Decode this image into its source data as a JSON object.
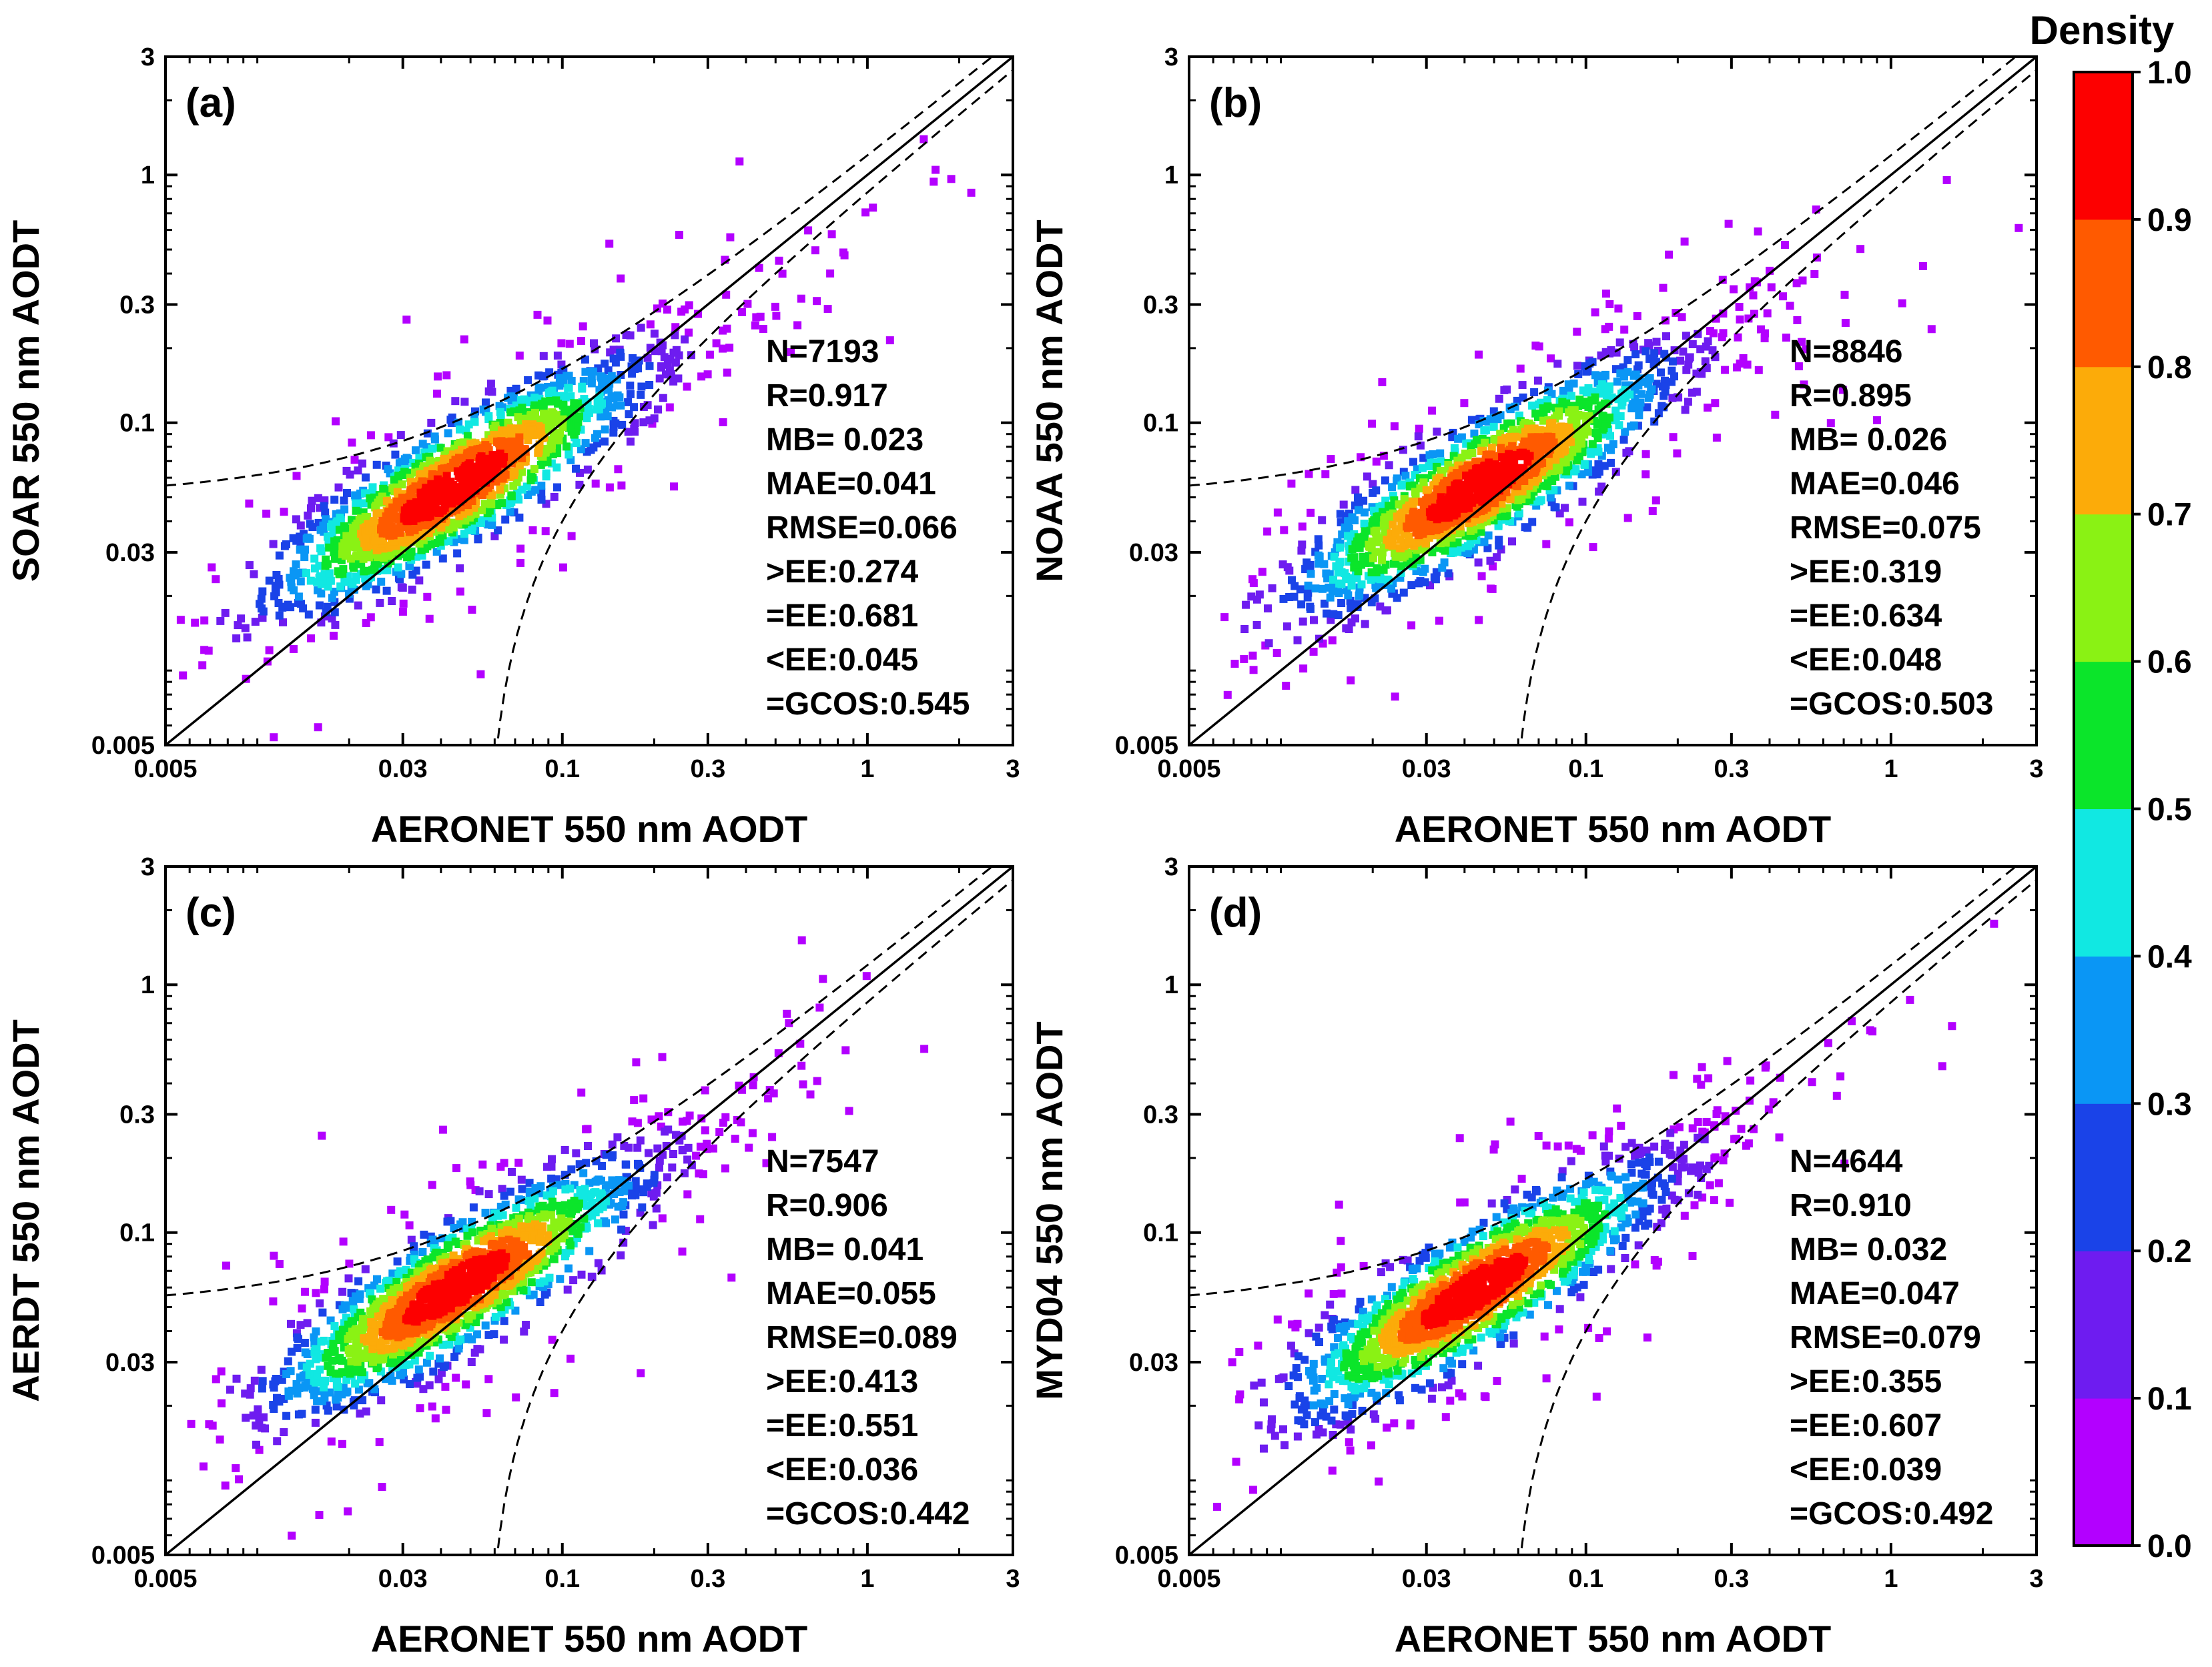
{
  "figure": {
    "colorbar": {
      "title": "Density",
      "ticks": [
        "0.0",
        "0.1",
        "0.2",
        "0.3",
        "0.4",
        "0.5",
        "0.6",
        "0.7",
        "0.8",
        "0.9",
        "1.0"
      ],
      "colors": [
        "#b300ff",
        "#6e1cf0",
        "#1a43e8",
        "#0a96f5",
        "#11e8e2",
        "#0be52a",
        "#8af214",
        "#fcab09",
        "#ff5a00",
        "#fd0000"
      ]
    }
  },
  "chart_data": [
    {
      "type": "scatter",
      "panel_label": "(a)",
      "xlabel": "AERONET 550 nm AODT",
      "ylabel": "SOAR 550 nm AODT",
      "xscale": "log",
      "yscale": "log",
      "xlim": [
        0.005,
        3
      ],
      "ylim": [
        0.005,
        3
      ],
      "x_ticks": [
        "0.005",
        "0.03",
        "0.1",
        "0.3",
        "1",
        "3"
      ],
      "y_ticks": [
        "0.005",
        "0.03",
        "0.1",
        "0.3",
        "1",
        "3"
      ],
      "reference_lines": [
        "1:1 line (solid)",
        "expected error envelope (dashed)"
      ],
      "density_center": [
        0.044,
        0.055
      ],
      "stats": [
        "N=7193",
        "R=0.917",
        "MB= 0.023",
        "MAE=0.041",
        "RMSE=0.066",
        ">EE:0.274",
        "=EE:0.681",
        "<EE:0.045",
        "=GCOS:0.545"
      ]
    },
    {
      "type": "scatter",
      "panel_label": "(b)",
      "xlabel": "AERONET 550 nm AODT",
      "ylabel": "NOAA 550 nm AODT",
      "xscale": "log",
      "yscale": "log",
      "xlim": [
        0.005,
        3
      ],
      "ylim": [
        0.005,
        3
      ],
      "x_ticks": [
        "0.005",
        "0.03",
        "0.1",
        "0.3",
        "1",
        "3"
      ],
      "y_ticks": [
        "0.005",
        "0.03",
        "0.1",
        "0.3",
        "1",
        "3"
      ],
      "reference_lines": [
        "1:1 line (solid)",
        "expected error envelope (dashed)"
      ],
      "density_center": [
        0.045,
        0.056
      ],
      "stats": [
        "N=8846",
        "R=0.895",
        "MB= 0.026",
        "MAE=0.046",
        "RMSE=0.075",
        ">EE:0.319",
        "=EE:0.634",
        "<EE:0.048",
        "=GCOS:0.503"
      ]
    },
    {
      "type": "scatter",
      "panel_label": "(c)",
      "xlabel": "AERONET 550 nm AODT",
      "ylabel": "AERDT 550 nm AODT",
      "xscale": "log",
      "yscale": "log",
      "xlim": [
        0.005,
        3
      ],
      "ylim": [
        0.005,
        3
      ],
      "x_ticks": [
        "0.005",
        "0.03",
        "0.1",
        "0.3",
        "1",
        "3"
      ],
      "y_ticks": [
        "0.005",
        "0.03",
        "0.1",
        "0.3",
        "1",
        "3"
      ],
      "reference_lines": [
        "1:1 line (solid)",
        "expected error envelope (dashed)"
      ],
      "density_center": [
        0.045,
        0.06
      ],
      "stats": [
        "N=7547",
        "R=0.906",
        "MB= 0.041",
        "MAE=0.055",
        "RMSE=0.089",
        ">EE:0.413",
        "=EE:0.551",
        "<EE:0.036",
        "=GCOS:0.442"
      ]
    },
    {
      "type": "scatter",
      "panel_label": "(d)",
      "xlabel": "AERONET 550 nm AODT",
      "ylabel": "MYD04 550 nm AODT",
      "xscale": "log",
      "yscale": "log",
      "xlim": [
        0.005,
        3
      ],
      "ylim": [
        0.005,
        3
      ],
      "x_ticks": [
        "0.005",
        "0.03",
        "0.1",
        "0.3",
        "1",
        "3"
      ],
      "y_ticks": [
        "0.005",
        "0.03",
        "0.1",
        "0.3",
        "1",
        "3"
      ],
      "reference_lines": [
        "1:1 line (solid)",
        "expected error envelope (dashed)"
      ],
      "density_center": [
        0.043,
        0.058
      ],
      "stats": [
        "N=4644",
        "R=0.910",
        "MB= 0.032",
        "MAE=0.047",
        "RMSE=0.079",
        ">EE:0.355",
        "=EE:0.607",
        "<EE:0.039",
        "=GCOS:0.492"
      ]
    }
  ]
}
